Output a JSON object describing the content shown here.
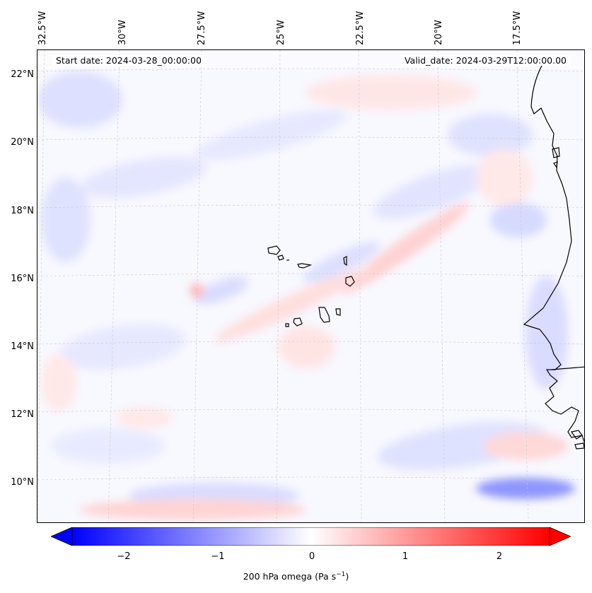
{
  "map": {
    "start_date": "Start date: 2024-03-28_00:00:00",
    "valid_date": "Valid_date: 2024-03-29T12:00:00.00",
    "lon_labels": [
      "32.5°W",
      "30°W",
      "27.5°W",
      "25°W",
      "22.5°W",
      "20°W",
      "17.5°W"
    ],
    "lat_labels": [
      "22°N",
      "20°N",
      "18°N",
      "16°N",
      "14°N",
      "12°N",
      "10°N"
    ],
    "field_colors": {
      "negative": "#0000ff",
      "zero": "#ffffff",
      "positive": "#ff0000"
    },
    "coastline_color": "#000000"
  },
  "colorbar": {
    "ticks": [
      "−2",
      "−1",
      "0",
      "1",
      "2"
    ],
    "label_main": "200 hPa omega (Pa s",
    "label_exp": "−1",
    "label_close": ")"
  }
}
